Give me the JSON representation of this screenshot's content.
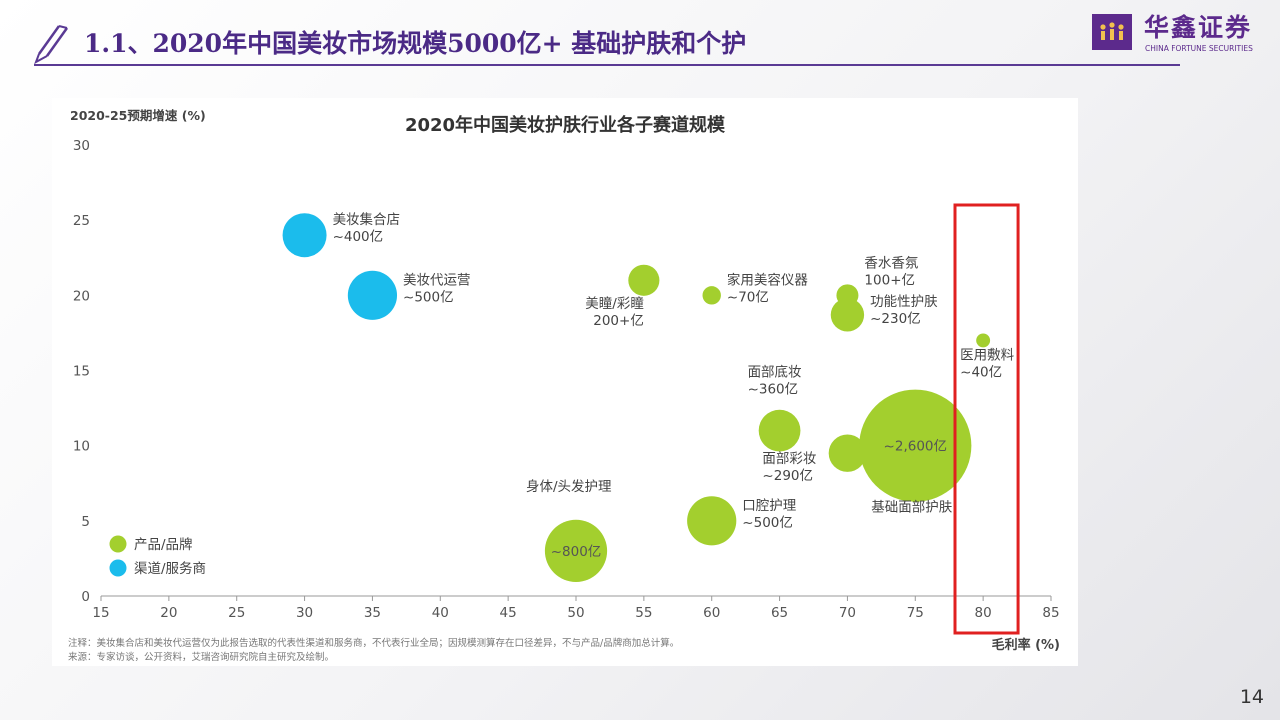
{
  "slide": {
    "title": "1.1、2020年中国美妆市场规模5000亿+ 基础护肤和个护",
    "page_number": "14",
    "logo": {
      "cn": "华鑫证券",
      "en": "CHINA FORTUNE SECURITIES"
    },
    "colors": {
      "brand": "#5c2a8c",
      "accent": "#4b2a86"
    }
  },
  "chart_data": {
    "type": "scatter",
    "title": "2020年中国美妆护肤行业各子赛道规模",
    "ylabel": "2020-25预期增速 (%)",
    "xlabel": "毛利率 (%)",
    "xlim": [
      15,
      85
    ],
    "ylim": [
      0,
      30
    ],
    "xticks": [
      "15",
      "20",
      "25",
      "30",
      "35",
      "40",
      "45",
      "50",
      "55",
      "60",
      "65",
      "70",
      "75",
      "80",
      "85"
    ],
    "yticks": [
      "0",
      "5",
      "10",
      "15",
      "20",
      "25",
      "30"
    ],
    "colors": {
      "product": "#a3cf2e",
      "channel": "#1bbcec",
      "highlight": "#e02020"
    },
    "legend": [
      {
        "label": "产品/品牌",
        "color": "#a3cf2e"
      },
      {
        "label": "渠道/服务商",
        "color": "#1bbcec"
      }
    ],
    "bubbles": [
      {
        "name": "美妆集合店",
        "size_label": "~400亿",
        "x": 30,
        "y": 24,
        "size": 400,
        "group": "channel"
      },
      {
        "name": "美妆代运营",
        "size_label": "~500亿",
        "x": 35,
        "y": 20,
        "size": 500,
        "group": "channel"
      },
      {
        "name": "美瞳/彩瞳",
        "size_label": "200+亿",
        "x": 55,
        "y": 21,
        "size": 200,
        "group": "product"
      },
      {
        "name": "家用美容仪器",
        "size_label": "~70亿",
        "x": 60,
        "y": 20,
        "size": 70,
        "group": "product"
      },
      {
        "name": "香水香氛",
        "size_label": "100+亿",
        "x": 70,
        "y": 20,
        "size": 100,
        "group": "product"
      },
      {
        "name": "功能性护肤",
        "size_label": "~230亿",
        "x": 70,
        "y": 18.7,
        "size": 230,
        "group": "product"
      },
      {
        "name": "医用敷料",
        "size_label": "~40亿",
        "x": 80,
        "y": 17,
        "size": 40,
        "group": "product"
      },
      {
        "name": "面部底妆",
        "size_label": "~360亿",
        "x": 65,
        "y": 11,
        "size": 360,
        "group": "product"
      },
      {
        "name": "面部彩妆",
        "size_label": "~290亿",
        "x": 70,
        "y": 9.5,
        "size": 290,
        "group": "product"
      },
      {
        "name": "基础面部护肤",
        "size_label": "~2,600亿",
        "x": 75,
        "y": 10,
        "size": 2600,
        "group": "product"
      },
      {
        "name": "口腔护理",
        "size_label": "~500亿",
        "x": 60,
        "y": 5,
        "size": 500,
        "group": "product"
      },
      {
        "name": "身体/头发护理",
        "size_label": "~800亿",
        "x": 50,
        "y": 3,
        "size": 800,
        "group": "product"
      }
    ],
    "highlight_range": [
      78,
      82.5
    ],
    "note": "注释：美妆集合店和美妆代运营仅为此报告选取的代表性渠道和服务商，不代表行业全局；因规模测算存在口径差异，不与产品/品牌商加总计算。",
    "source": "来源：专家访谈，公开资料，艾瑞咨询研究院自主研究及绘制。"
  }
}
